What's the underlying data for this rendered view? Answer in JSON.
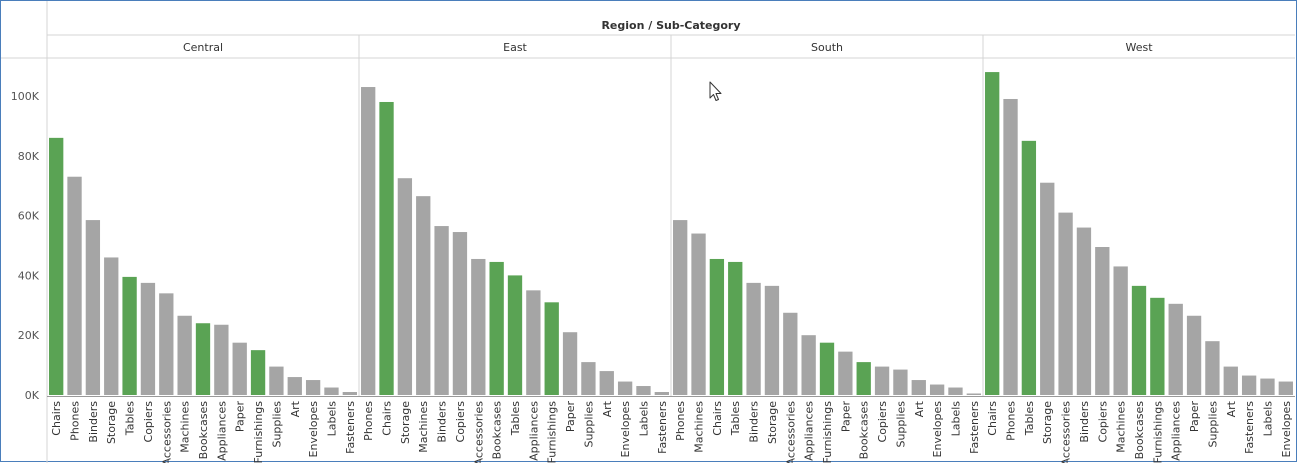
{
  "colors": {
    "highlight": "#5aa354",
    "default": "#a5a5a5",
    "frame_border": "#4a7ebb",
    "divider": "#d4d4d4"
  },
  "cursor_icon": "mouse-pointer-icon",
  "chart_data": {
    "type": "bar",
    "title": "Region / Sub-Category",
    "ylim": [
      0,
      110000
    ],
    "y_ticks": [
      {
        "value": 0,
        "label": "0K"
      },
      {
        "value": 20000,
        "label": "20K"
      },
      {
        "value": 40000,
        "label": "40K"
      },
      {
        "value": 60000,
        "label": "60K"
      },
      {
        "value": 80000,
        "label": "80K"
      },
      {
        "value": 100000,
        "label": "100K"
      }
    ],
    "highlighted_categories": [
      "Chairs",
      "Tables",
      "Bookcases",
      "Furnishings"
    ],
    "panels": [
      {
        "region": "Central",
        "categories": [
          "Chairs",
          "Phones",
          "Binders",
          "Storage",
          "Tables",
          "Copiers",
          "Accessories",
          "Machines",
          "Bookcases",
          "Appliances",
          "Paper",
          "Furnishings",
          "Supplies",
          "Art",
          "Envelopes",
          "Labels",
          "Fasteners"
        ],
        "values": [
          86000,
          73000,
          58500,
          46000,
          39500,
          37500,
          34000,
          26500,
          24000,
          23500,
          17500,
          15000,
          9500,
          6000,
          5000,
          2500,
          1000
        ]
      },
      {
        "region": "East",
        "categories": [
          "Phones",
          "Chairs",
          "Storage",
          "Machines",
          "Binders",
          "Copiers",
          "Accessories",
          "Bookcases",
          "Tables",
          "Appliances",
          "Furnishings",
          "Paper",
          "Supplies",
          "Art",
          "Envelopes",
          "Labels",
          "Fasteners"
        ],
        "values": [
          103000,
          98000,
          72500,
          66500,
          56500,
          54500,
          45500,
          44500,
          40000,
          35000,
          31000,
          21000,
          11000,
          8000,
          4500,
          3000,
          1000
        ]
      },
      {
        "region": "South",
        "categories": [
          "Phones",
          "Machines",
          "Chairs",
          "Tables",
          "Binders",
          "Storage",
          "Accessories",
          "Appliances",
          "Furnishings",
          "Paper",
          "Bookcases",
          "Copiers",
          "Supplies",
          "Art",
          "Envelopes",
          "Labels",
          "Fasteners"
        ],
        "values": [
          58500,
          54000,
          45500,
          44500,
          37500,
          36500,
          27500,
          20000,
          17500,
          14500,
          11000,
          9500,
          8500,
          5000,
          3500,
          2500,
          500
        ]
      },
      {
        "region": "West",
        "categories": [
          "Chairs",
          "Phones",
          "Tables",
          "Storage",
          "Accessories",
          "Binders",
          "Copiers",
          "Machines",
          "Bookcases",
          "Furnishings",
          "Appliances",
          "Paper",
          "Supplies",
          "Art",
          "Fasteners",
          "Labels",
          "Envelopes"
        ],
        "values": [
          108000,
          99000,
          85000,
          71000,
          61000,
          56000,
          49500,
          43000,
          36500,
          32500,
          30500,
          26500,
          18000,
          9500,
          6500,
          5500,
          4500
        ]
      }
    ]
  }
}
